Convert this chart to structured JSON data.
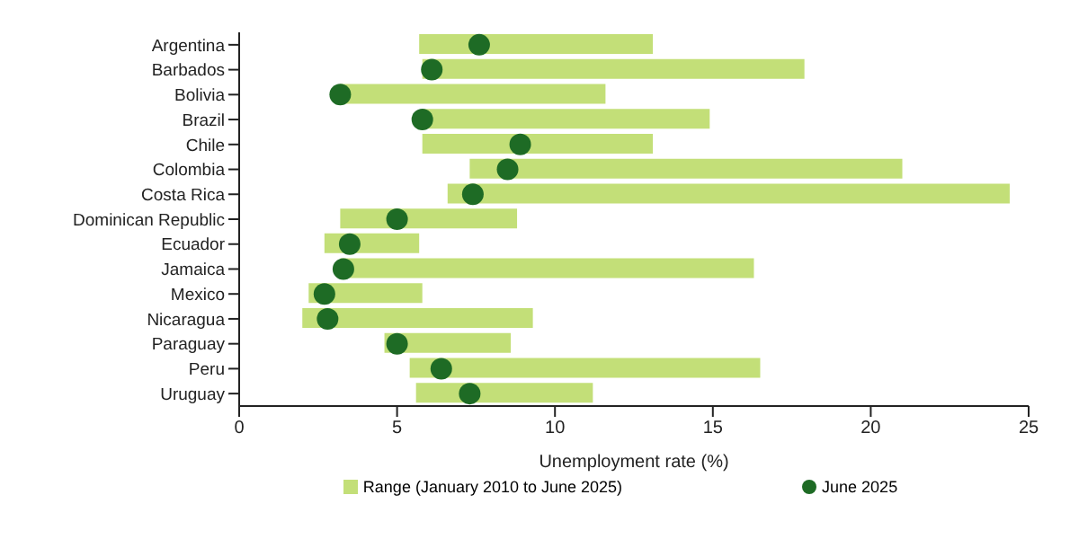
{
  "chart_data": {
    "type": "bar",
    "orientation": "horizontal",
    "xlabel": "Unemployment rate (%)",
    "categories": [
      "Argentina",
      "Barbados",
      "Bolivia",
      "Brazil",
      "Chile",
      "Colombia",
      "Costa Rica",
      "Dominican Republic",
      "Ecuador",
      "Jamaica",
      "Mexico",
      "Nicaragua",
      "Paraguay",
      "Peru",
      "Uruguay"
    ],
    "series": [
      {
        "name": "Range (January 2010 to June 2025)",
        "color": "#c3df78",
        "base": [
          5.7,
          5.8,
          3.2,
          5.8,
          5.8,
          7.3,
          6.6,
          3.2,
          2.7,
          3.2,
          2.2,
          2.0,
          4.6,
          5.4,
          5.6
        ],
        "values": [
          7.4,
          12.1,
          8.4,
          9.1,
          7.3,
          13.7,
          17.8,
          5.6,
          3.0,
          13.1,
          3.6,
          7.3,
          4.0,
          11.1,
          5.6
        ]
      },
      {
        "name": "June 2025",
        "type": "scatter",
        "color": "#1e6b25",
        "marker": "circle",
        "values": [
          7.6,
          6.1,
          3.2,
          5.8,
          8.9,
          8.5,
          7.4,
          5.0,
          3.5,
          3.3,
          2.7,
          2.8,
          5.0,
          6.4,
          7.3
        ]
      }
    ],
    "xlim": [
      0,
      25
    ],
    "xticks": [
      0,
      5,
      10,
      15,
      20,
      25
    ],
    "grid": false,
    "legend": "bottom"
  }
}
